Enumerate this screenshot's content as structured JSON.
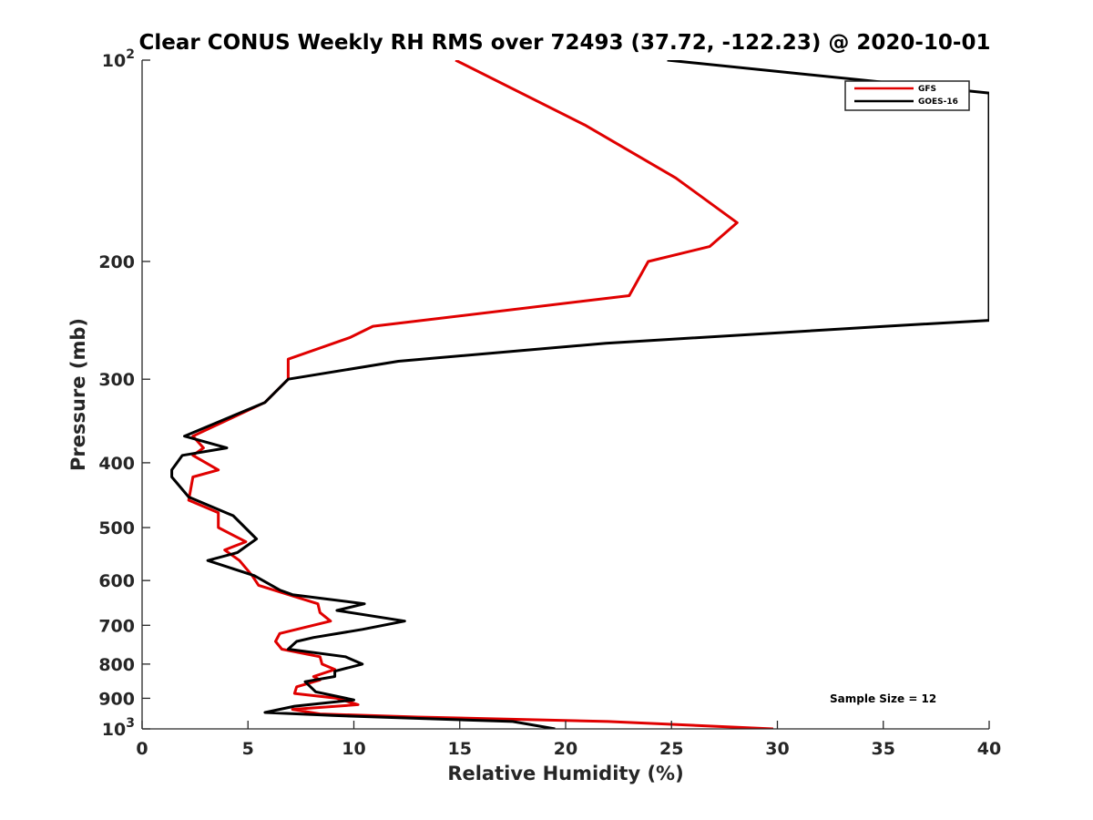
{
  "chart_data": {
    "type": "line",
    "title": "Clear CONUS Weekly RH RMS over 72493 (37.72, -122.23) @ 2020-10-01",
    "xlabel": "Relative Humidity (%)",
    "ylabel": "Pressure (mb)",
    "xlim": [
      0,
      40
    ],
    "ylim": [
      100,
      1000
    ],
    "yscale": "log",
    "yreversed": true,
    "xticks": [
      "0",
      "5",
      "10",
      "15",
      "20",
      "25",
      "30",
      "35",
      "40"
    ],
    "yticks": [
      {
        "value": 100,
        "base": "10",
        "exp": "2"
      },
      {
        "value": 200,
        "label": "200"
      },
      {
        "value": 300,
        "label": "300"
      },
      {
        "value": 400,
        "label": "400"
      },
      {
        "value": 500,
        "label": "500"
      },
      {
        "value": 600,
        "label": "600"
      },
      {
        "value": 700,
        "label": "700"
      },
      {
        "value": 800,
        "label": "800"
      },
      {
        "value": 900,
        "label": "900"
      },
      {
        "value": 1000,
        "base": "10",
        "exp": "3"
      }
    ],
    "legend_position": "top-right",
    "annotation": "Sample Size = 12",
    "series": [
      {
        "name": "GFS",
        "color": "#e00000",
        "points": [
          [
            14.8,
            100
          ],
          [
            20.9,
            125
          ],
          [
            25.2,
            150
          ],
          [
            28.1,
            175
          ],
          [
            26.8,
            190
          ],
          [
            23.9,
            200
          ],
          [
            23.0,
            225
          ],
          [
            10.9,
            250
          ],
          [
            9.8,
            260
          ],
          [
            6.9,
            280
          ],
          [
            6.9,
            300
          ],
          [
            5.8,
            325
          ],
          [
            2.4,
            365
          ],
          [
            2.9,
            380
          ],
          [
            2.4,
            390
          ],
          [
            3.6,
            410
          ],
          [
            2.4,
            420
          ],
          [
            2.2,
            455
          ],
          [
            3.6,
            475
          ],
          [
            3.6,
            500
          ],
          [
            4.9,
            525
          ],
          [
            3.9,
            540
          ],
          [
            4.6,
            560
          ],
          [
            5.2,
            590
          ],
          [
            5.5,
            610
          ],
          [
            8.3,
            650
          ],
          [
            8.4,
            670
          ],
          [
            8.9,
            690
          ],
          [
            6.5,
            720
          ],
          [
            6.3,
            740
          ],
          [
            6.6,
            760
          ],
          [
            8.4,
            780
          ],
          [
            8.5,
            800
          ],
          [
            9.1,
            815
          ],
          [
            8.1,
            835
          ],
          [
            8.4,
            845
          ],
          [
            7.3,
            865
          ],
          [
            7.2,
            885
          ],
          [
            9.2,
            900
          ],
          [
            10.2,
            920
          ],
          [
            7.1,
            935
          ],
          [
            8.4,
            950
          ],
          [
            13.0,
            960
          ],
          [
            22.0,
            975
          ],
          [
            29.8,
            1000
          ]
        ]
      },
      {
        "name": "GOES-16",
        "color": "#000000",
        "points": [
          [
            24.8,
            100
          ],
          [
            40.0,
            112
          ],
          [
            40.0,
            245
          ],
          [
            35.1,
            250
          ],
          [
            21.9,
            265
          ],
          [
            12.1,
            282
          ],
          [
            6.9,
            300
          ],
          [
            5.8,
            325
          ],
          [
            2.0,
            365
          ],
          [
            4.0,
            380
          ],
          [
            1.9,
            390
          ],
          [
            1.4,
            410
          ],
          [
            1.4,
            420
          ],
          [
            2.2,
            450
          ],
          [
            4.3,
            480
          ],
          [
            5.4,
            520
          ],
          [
            4.5,
            545
          ],
          [
            3.1,
            560
          ],
          [
            5.3,
            590
          ],
          [
            6.5,
            620
          ],
          [
            7.1,
            630
          ],
          [
            10.5,
            650
          ],
          [
            9.2,
            665
          ],
          [
            12.4,
            690
          ],
          [
            10.4,
            710
          ],
          [
            8.1,
            730
          ],
          [
            7.3,
            740
          ],
          [
            6.9,
            760
          ],
          [
            9.6,
            780
          ],
          [
            10.4,
            800
          ],
          [
            9.1,
            820
          ],
          [
            9.1,
            835
          ],
          [
            7.7,
            850
          ],
          [
            8.2,
            880
          ],
          [
            10.0,
            905
          ],
          [
            7.2,
            925
          ],
          [
            5.8,
            945
          ],
          [
            9.0,
            955
          ],
          [
            17.5,
            975
          ],
          [
            19.5,
            1000
          ]
        ]
      }
    ]
  }
}
